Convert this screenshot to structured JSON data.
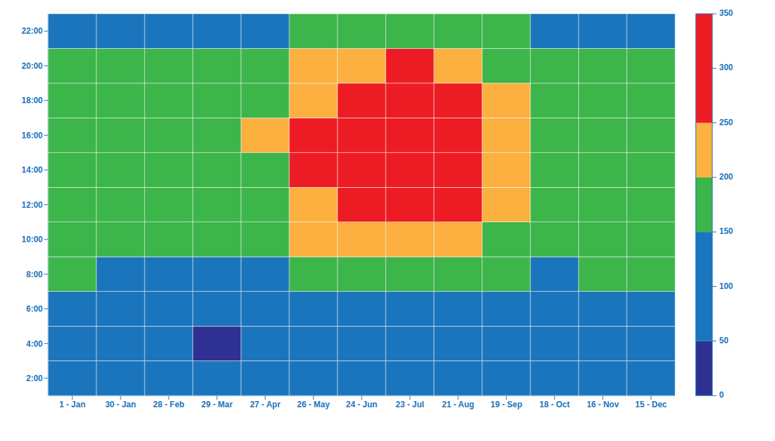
{
  "chart_data": {
    "type": "heatmap",
    "x_categories": [
      "1 - Jan",
      "30 - Jan",
      "28 - Feb",
      "29 - Mar",
      "27 - Apr",
      "26 - May",
      "24 - Jun",
      "23 - Jul",
      "21 - Aug",
      "19 - Sep",
      "18 - Oct",
      "16 - Nov",
      "15 - Dec"
    ],
    "y_categories": [
      "2:00",
      "4:00",
      "6:00",
      "8:00",
      "10:00",
      "12:00",
      "14:00",
      "16:00",
      "18:00",
      "20:00",
      "22:00"
    ],
    "values": [
      [
        110,
        105,
        100,
        95,
        90,
        100,
        115,
        120,
        115,
        105,
        100,
        105,
        110
      ],
      [
        100,
        95,
        90,
        45,
        80,
        90,
        105,
        110,
        105,
        95,
        90,
        95,
        100
      ],
      [
        120,
        115,
        110,
        100,
        95,
        110,
        130,
        135,
        125,
        110,
        105,
        115,
        120
      ],
      [
        150,
        145,
        140,
        135,
        140,
        160,
        185,
        190,
        175,
        155,
        145,
        150,
        150
      ],
      [
        160,
        155,
        150,
        150,
        165,
        200,
        240,
        245,
        220,
        185,
        165,
        160,
        160
      ],
      [
        165,
        160,
        155,
        160,
        185,
        235,
        290,
        300,
        260,
        215,
        175,
        165,
        165
      ],
      [
        165,
        160,
        155,
        165,
        195,
        255,
        330,
        340,
        285,
        235,
        180,
        165,
        165
      ],
      [
        170,
        165,
        160,
        170,
        200,
        260,
        335,
        345,
        290,
        240,
        185,
        170,
        170
      ],
      [
        180,
        175,
        170,
        170,
        190,
        240,
        300,
        305,
        260,
        215,
        180,
        180,
        180
      ],
      [
        170,
        165,
        160,
        160,
        170,
        205,
        245,
        250,
        220,
        185,
        170,
        170,
        170
      ],
      [
        140,
        135,
        130,
        130,
        140,
        160,
        185,
        190,
        170,
        150,
        140,
        140,
        140
      ]
    ],
    "colorbar": {
      "range": [
        0,
        350
      ],
      "ticks": [
        0,
        50,
        100,
        150,
        200,
        250,
        300,
        350
      ],
      "bounds": [
        0,
        50,
        150,
        200,
        250,
        350
      ],
      "colors": [
        "#2e3192",
        "#1b75bc",
        "#3cb54a",
        "#fbb040",
        "#ed1c24"
      ]
    }
  }
}
